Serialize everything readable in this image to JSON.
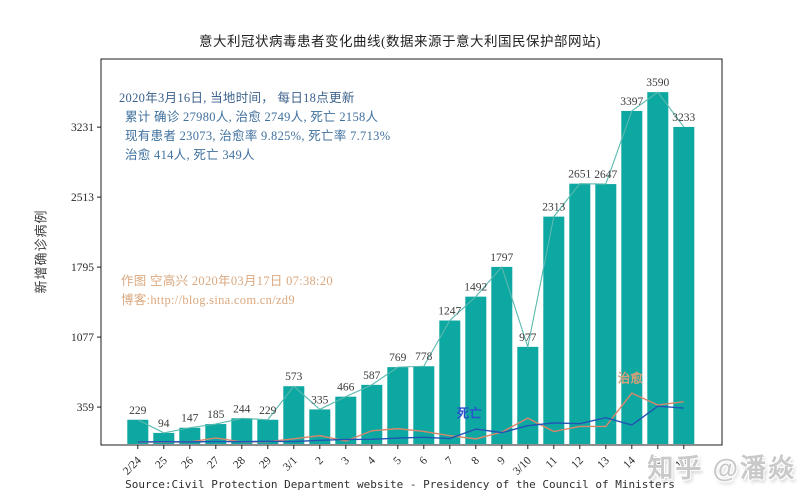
{
  "title": "意大利冠状病毒患者变化曲线(数据来源于意大利国民保护部网站)",
  "info_box": {
    "line1": "2020年3月16日, 当地时间， 每日18点更新",
    "line2": "累计 确诊 27980人, 治愈 2749人, 死亡 2158人",
    "line3": "现有患者 23073, 治愈率 9.825%, 死亡率 7.713%",
    "line4": "治愈 414人, 死亡 349人"
  },
  "credit_box": {
    "line1": "作图 空高兴 2020年03月17日 07:38:20",
    "line2": "博客:http://blog.sina.com.cn/zd9"
  },
  "y_axis_label": "新增确诊病例",
  "source_line": "Source:Civil Protection Department website - Presidency of the Council of Ministers",
  "watermark": "知乎 @潘焱",
  "chart_data": {
    "type": "bar",
    "title": "意大利冠状病毒患者变化曲线(数据来源于意大利国民保护部网站)",
    "xlabel": "",
    "ylabel": "新增确诊病例",
    "categories": [
      "2/24",
      "25",
      "26",
      "27",
      "28",
      "29",
      "3/1",
      "2",
      "3",
      "4",
      "5",
      "6",
      "7",
      "8",
      "9",
      "3/10",
      "11",
      "12",
      "13",
      "14",
      "15",
      "16"
    ],
    "series": [
      {
        "name": "新增确诊",
        "type": "bar",
        "color": "#0ea8a2",
        "connector_color": "#5ab9af",
        "labels": true,
        "values": [
          229,
          94,
          147,
          185,
          244,
          229,
          573,
          335,
          466,
          587,
          769,
          778,
          1247,
          1492,
          1797,
          977,
          2313,
          2651,
          2647,
          3397,
          3590,
          3233
        ]
      },
      {
        "name": "治愈",
        "type": "line",
        "color": "#d9866a",
        "values": [
          0,
          0,
          2,
          42,
          1,
          4,
          33,
          66,
          11,
          116,
          138,
          109,
          66,
          33,
          102,
          245,
          108,
          160,
          160,
          502,
          380,
          414
        ]
      },
      {
        "name": "死亡",
        "type": "line",
        "color": "#2353b4",
        "values": [
          1,
          4,
          2,
          5,
          4,
          8,
          5,
          18,
          27,
          28,
          41,
          49,
          36,
          133,
          97,
          168,
          196,
          189,
          250,
          175,
          368,
          349
        ]
      }
    ],
    "yticks": [
      359,
      1077,
      1795,
      2513,
      3231
    ],
    "ylim": [
      -30,
      3930
    ],
    "grid": false,
    "legend": "inline",
    "inline_labels": [
      {
        "text": "死亡",
        "color": "#2a52cc",
        "x_index": 12,
        "dx": 7,
        "y_value": 250
      },
      {
        "text": "治愈",
        "color": "#d8a078",
        "x_index": 19,
        "dx": -14,
        "y_value": 610
      }
    ]
  }
}
